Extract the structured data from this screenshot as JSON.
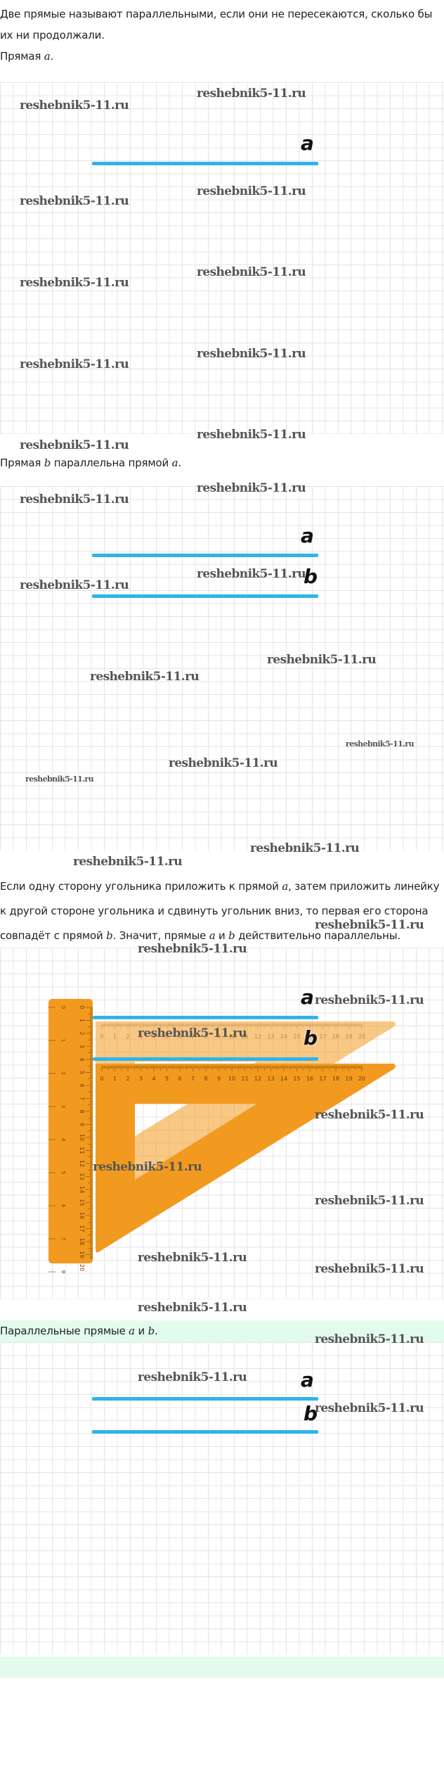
{
  "watermark": "reshebnik5-11.ru",
  "section1": {
    "intro_line1": "Две прямые называют параллельными, если они не пересекаются, сколько бы",
    "intro_line2": "их ни продолжали.",
    "caption_prefix": "Прямая ",
    "caption_var": "a",
    "caption_suffix": ".",
    "line_label": "a"
  },
  "section2": {
    "caption_prefix": "Прямая ",
    "caption_var_b": "b",
    "caption_mid": " параллельна прямой ",
    "caption_var_a": "a",
    "caption_suffix": ".",
    "label_a": "a",
    "label_b": "b"
  },
  "section3": {
    "line1_prefix": "Если одну сторону угольника приложить к прямой ",
    "line1_var": "a",
    "line1_suffix": ", затем приложить линейку",
    "line2": "к другой стороне угольника и сдвинуть угольник вниз, то первая его сторона",
    "line3_prefix": "совпадёт с прямой ",
    "line3_var_b": "b",
    "line3_mid1": ". Значит, прямые ",
    "line3_var_a": "a",
    "line3_mid2": " и ",
    "line3_var_b2": "b",
    "line3_suffix": " действительно параллельны.",
    "label_a": "a",
    "label_b": "b",
    "triangle_scale": [
      "0",
      "1",
      "2",
      "3",
      "4",
      "5",
      "6",
      "7",
      "8",
      "9",
      "10",
      "11",
      "12",
      "13",
      "14",
      "15",
      "16",
      "17",
      "18",
      "19",
      "20"
    ],
    "ruler_cm_scale": [
      "0",
      "1",
      "2",
      "3",
      "4",
      "5",
      "6",
      "7",
      "8",
      "9",
      "10",
      "11",
      "12",
      "13",
      "14",
      "15",
      "16",
      "17",
      "18",
      "19",
      "20"
    ],
    "ruler_inch_scale": [
      "0",
      "1",
      "2",
      "3",
      "4",
      "5",
      "6",
      "7",
      "8"
    ],
    "colors": {
      "tool": "#f29a1f",
      "tool_faded": "#f7c98a",
      "line": "#2eb4ea"
    }
  },
  "section4": {
    "caption_prefix": "Параллельные прямые ",
    "caption_var_a": "a",
    "caption_mid": " и ",
    "caption_var_b": "b",
    "caption_suffix": ".",
    "label_a": "a",
    "label_b": "b"
  }
}
